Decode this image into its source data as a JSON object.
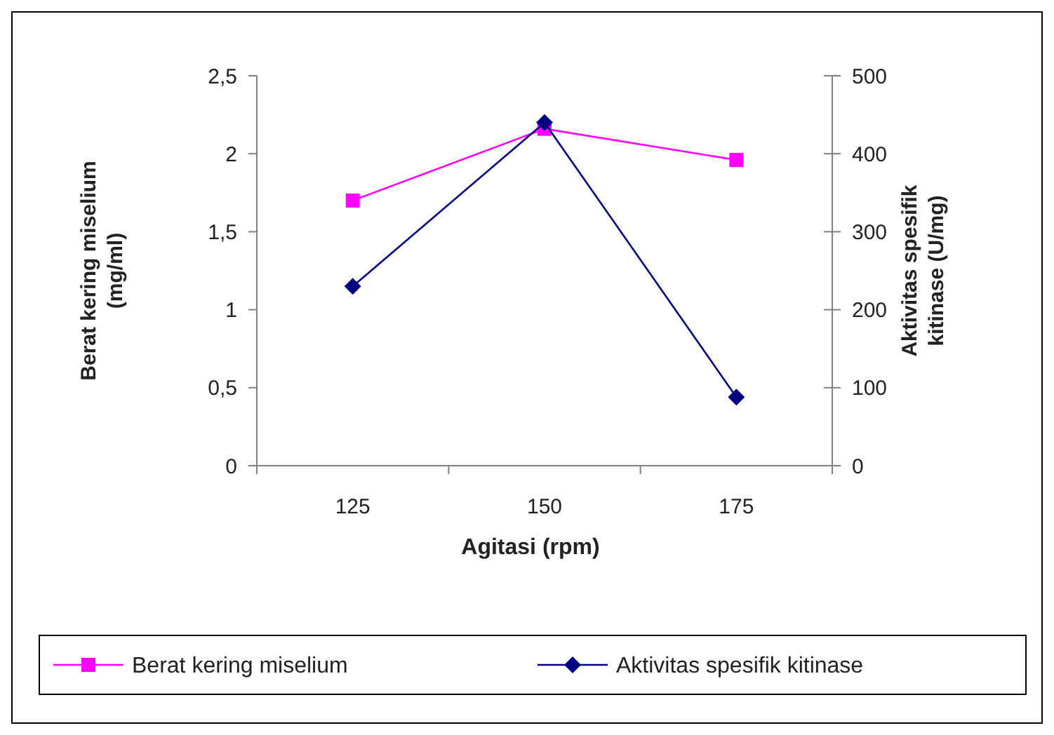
{
  "chart_data": {
    "type": "line",
    "categories": [
      "125",
      "150",
      "175"
    ],
    "xlabel": "Agitasi (rpm)",
    "ylabel": "Berat kering miselium (mg/ml)",
    "y2label": "Aktivitas spesifik kitinase (U/mg)",
    "ylim": [
      0,
      2.5
    ],
    "yticks": [
      0,
      {
        "value": 0.5,
        "label": "0,5"
      },
      1,
      {
        "value": 1.5,
        "label": "1,5"
      },
      2,
      {
        "value": 2.5,
        "label": "2,5"
      }
    ],
    "y2lim": [
      0,
      500
    ],
    "y2ticks": [
      0,
      100,
      200,
      300,
      400,
      500
    ],
    "legend": "bottom",
    "series": [
      {
        "name": "Berat kering miselium",
        "color": "#ff00ff",
        "marker": "square",
        "values": [
          1.7,
          2.16,
          1.96
        ]
      },
      {
        "name": "Aktivitas spesifik kitinase",
        "color": "#000080",
        "marker": "diamond",
        "axis": "y2",
        "values": [
          230,
          440,
          88
        ]
      }
    ]
  }
}
